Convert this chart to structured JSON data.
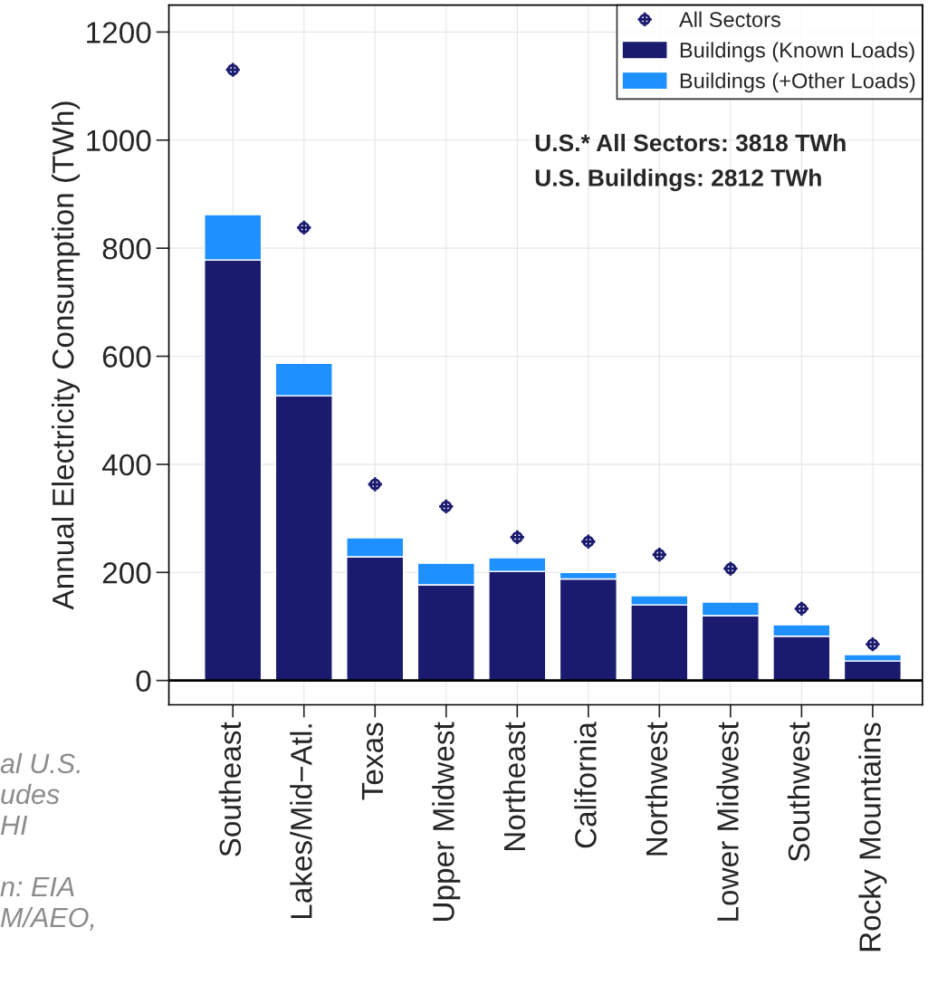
{
  "chart_data": {
    "type": "bar",
    "stacked": true,
    "ylabel": "Annual Electricity Consumption (TWh)",
    "categories": [
      "Southeast",
      "Lakes/Mid−Atl.",
      "Texas",
      "Upper Midwest",
      "Northeast",
      "California",
      "Northwest",
      "Lower Midwest",
      "Southwest",
      "Rocky Mountains"
    ],
    "series": [
      {
        "name": "Buildings (Known Loads)",
        "color": "#1a1a6e",
        "values": [
          778,
          527,
          229,
          177,
          202,
          188,
          140,
          120,
          82,
          36
        ]
      },
      {
        "name": "Buildings (+Other Loads)",
        "color": "#1e90ff",
        "values": [
          84,
          60,
          35,
          40,
          25,
          12,
          17,
          25,
          21,
          12
        ]
      },
      {
        "name": "All Sectors",
        "type": "scatter",
        "marker": "cross",
        "color": "#1a1a6e",
        "values": [
          1130,
          838,
          363,
          322,
          265,
          257,
          233,
          207,
          133,
          67
        ]
      }
    ],
    "ylim": [
      -45,
      1250
    ],
    "yticks": [
      0,
      200,
      400,
      600,
      800,
      1000,
      1200
    ],
    "grid": true,
    "legend": "top right",
    "ref_lines": [
      {
        "axis": "y",
        "value": 0,
        "color": "#000000"
      }
    ],
    "annotations": [
      "U.S.* All Sectors: 3818 TWh",
      "U.S. Buildings: 2812 TWh",
      "al U.S.\nudes\nHI\n\nn: EIA\nM/AEO,"
    ]
  }
}
